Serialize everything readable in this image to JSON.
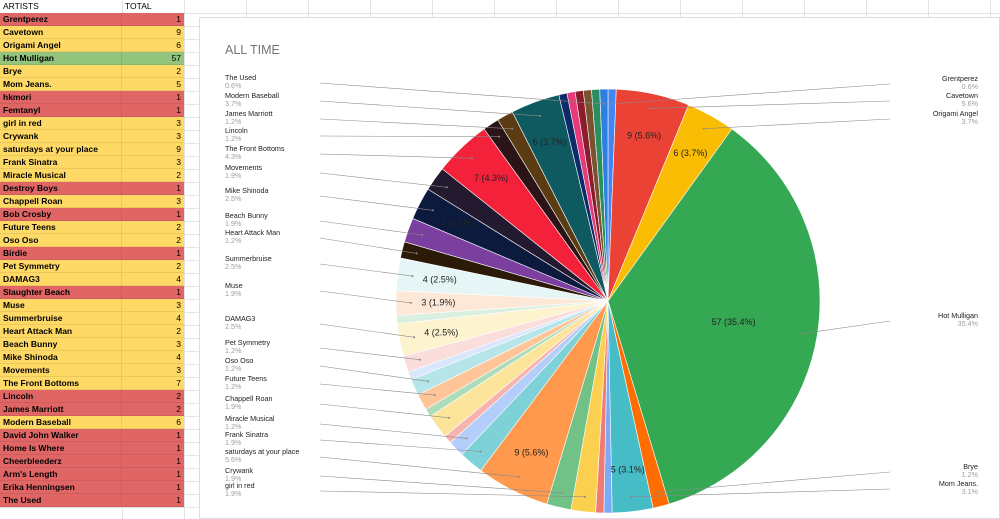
{
  "sheet": {
    "header_artists": "ARTISTS",
    "header_total": "TOTAL",
    "rows": [
      {
        "artist": "Grentperez",
        "total": "1",
        "color": "#e06666"
      },
      {
        "artist": "Cavetown",
        "total": "9",
        "color": "#ffd966"
      },
      {
        "artist": "Origami Angel",
        "total": "6",
        "color": "#ffd966"
      },
      {
        "artist": "Hot Mulligan",
        "total": "57",
        "color": "#93c47d"
      },
      {
        "artist": "Brye",
        "total": "2",
        "color": "#ffd966"
      },
      {
        "artist": "Mom Jeans.",
        "total": "5",
        "color": "#ffd966"
      },
      {
        "artist": "hkmori",
        "total": "1",
        "color": "#e06666"
      },
      {
        "artist": "Femtanyl",
        "total": "1",
        "color": "#e06666"
      },
      {
        "artist": "girl in red",
        "total": "3",
        "color": "#ffd966"
      },
      {
        "artist": "Crywank",
        "total": "3",
        "color": "#ffd966"
      },
      {
        "artist": "saturdays at your place",
        "total": "9",
        "color": "#ffd966"
      },
      {
        "artist": "Frank Sinatra",
        "total": "3",
        "color": "#ffd966"
      },
      {
        "artist": "Miracle Musical",
        "total": "2",
        "color": "#ffd966"
      },
      {
        "artist": "Destroy Boys",
        "total": "1",
        "color": "#e06666"
      },
      {
        "artist": "Chappell Roan",
        "total": "3",
        "color": "#ffd966"
      },
      {
        "artist": "Bob Crosby",
        "total": "1",
        "color": "#e06666"
      },
      {
        "artist": "Future Teens",
        "total": "2",
        "color": "#ffd966"
      },
      {
        "artist": "Oso Oso",
        "total": "2",
        "color": "#ffd966"
      },
      {
        "artist": "Birdie",
        "total": "1",
        "color": "#e06666"
      },
      {
        "artist": "Pet Symmetry",
        "total": "2",
        "color": "#ffd966"
      },
      {
        "artist": "DAMAG3",
        "total": "4",
        "color": "#ffd966"
      },
      {
        "artist": "Slaughter Beach",
        "total": "1",
        "color": "#e06666"
      },
      {
        "artist": "Muse",
        "total": "3",
        "color": "#ffd966"
      },
      {
        "artist": "Summerbruise",
        "total": "4",
        "color": "#ffd966"
      },
      {
        "artist": "Heart Attack Man",
        "total": "2",
        "color": "#ffd966"
      },
      {
        "artist": "Beach Bunny",
        "total": "3",
        "color": "#ffd966"
      },
      {
        "artist": "Mike Shinoda",
        "total": "4",
        "color": "#ffd966"
      },
      {
        "artist": "Movements",
        "total": "3",
        "color": "#ffd966"
      },
      {
        "artist": "The Front Bottoms",
        "total": "7",
        "color": "#ffd966"
      },
      {
        "artist": "Lincoln",
        "total": "2",
        "color": "#e06666"
      },
      {
        "artist": "James Marriott",
        "total": "2",
        "color": "#e06666"
      },
      {
        "artist": "Modern Baseball",
        "total": "6",
        "color": "#ffd966"
      },
      {
        "artist": "David John Walker",
        "total": "1",
        "color": "#e06666"
      },
      {
        "artist": "Home Is Where",
        "total": "1",
        "color": "#e06666"
      },
      {
        "artist": "Cheerbleederz",
        "total": "1",
        "color": "#e06666"
      },
      {
        "artist": "Arm's Length",
        "total": "1",
        "color": "#e06666"
      },
      {
        "artist": "Erika Henningsen",
        "total": "1",
        "color": "#e06666"
      },
      {
        "artist": "The Used",
        "total": "1",
        "color": "#e06666"
      }
    ]
  },
  "chart_data": {
    "type": "pie",
    "title": "ALL TIME",
    "slices": [
      {
        "name": "Grentperez",
        "value": 1,
        "label": "",
        "legend_pct": "0.6%",
        "color": "#4285f4"
      },
      {
        "name": "Cavetown",
        "value": 9,
        "label": "9 (5.6%)",
        "legend_pct": "5.6%",
        "color": "#ea4335"
      },
      {
        "name": "Origami Angel",
        "value": 6,
        "label": "6 (3.7%)",
        "legend_pct": "3.7%",
        "color": "#fbbc04"
      },
      {
        "name": "Hot Mulligan",
        "value": 57,
        "label": "57 (35.4%)",
        "legend_pct": "35.4%",
        "color": "#34a853"
      },
      {
        "name": "Brye",
        "value": 2,
        "label": "",
        "legend_pct": "1.2%",
        "color": "#ff6d01"
      },
      {
        "name": "Mom Jeans.",
        "value": 5,
        "label": "5 (3.1%)",
        "legend_pct": "3.1%",
        "color": "#46bdc6"
      },
      {
        "name": "hkmori",
        "value": 1,
        "label": "",
        "legend_pct": "",
        "color": "#7baaf7"
      },
      {
        "name": "Femtanyl",
        "value": 1,
        "label": "",
        "legend_pct": "",
        "color": "#f07b72"
      },
      {
        "name": "girl in red",
        "value": 3,
        "label": "",
        "legend_pct": "1.9%",
        "color": "#fcd04f"
      },
      {
        "name": "Crywank",
        "value": 3,
        "label": "",
        "legend_pct": "1.9%",
        "color": "#71c287"
      },
      {
        "name": "saturdays at your place",
        "value": 9,
        "label": "9 (5.6%)",
        "legend_pct": "5.6%",
        "color": "#ff994d"
      },
      {
        "name": "Frank Sinatra",
        "value": 3,
        "label": "",
        "legend_pct": "1.9%",
        "color": "#7ed1d7"
      },
      {
        "name": "Miracle Musical",
        "value": 2,
        "label": "",
        "legend_pct": "1.2%",
        "color": "#b3cefb"
      },
      {
        "name": "Destroy Boys",
        "value": 1,
        "label": "",
        "legend_pct": "",
        "color": "#f7b4ae"
      },
      {
        "name": "Chappell Roan",
        "value": 3,
        "label": "",
        "legend_pct": "1.9%",
        "color": "#fde49b"
      },
      {
        "name": "Bob Crosby",
        "value": 1,
        "label": "",
        "legend_pct": "",
        "color": "#aedcba"
      },
      {
        "name": "Future Teens",
        "value": 2,
        "label": "",
        "legend_pct": "1.2%",
        "color": "#ffc599"
      },
      {
        "name": "Oso Oso",
        "value": 2,
        "label": "",
        "legend_pct": "1.2%",
        "color": "#b5e5e8"
      },
      {
        "name": "Birdie",
        "value": 1,
        "label": "",
        "legend_pct": "",
        "color": "#d9e6fc"
      },
      {
        "name": "Pet Symmetry",
        "value": 2,
        "label": "",
        "legend_pct": "1.2%",
        "color": "#fbdedb"
      },
      {
        "name": "DAMAG3",
        "value": 4,
        "label": "4 (2.5%)",
        "legend_pct": "2.5%",
        "color": "#fef3cf"
      },
      {
        "name": "Slaughter Beach",
        "value": 1,
        "label": "",
        "legend_pct": "",
        "color": "#d9efdf"
      },
      {
        "name": "Muse",
        "value": 3,
        "label": "3 (1.9%)",
        "legend_pct": "1.9%",
        "color": "#fde8d8"
      },
      {
        "name": "Summerbruise",
        "value": 4,
        "label": "4 (2.5%)",
        "legend_pct": "2.5%",
        "color": "#e6f6f7"
      },
      {
        "name": "Heart Attack Man",
        "value": 2,
        "label": "",
        "legend_pct": "1.2%",
        "color": "#2c1a09"
      },
      {
        "name": "Beach Bunny",
        "value": 3,
        "label": "",
        "legend_pct": "1.9%",
        "color": "#7b3fa0"
      },
      {
        "name": "Mike Shinoda",
        "value": 4,
        "label": "4 (2.5%)",
        "legend_pct": "2.5%",
        "color": "#0c1a3d"
      },
      {
        "name": "Movements",
        "value": 3,
        "label": "",
        "legend_pct": "1.9%",
        "color": "#241a2f"
      },
      {
        "name": "The Front Bottoms",
        "value": 7,
        "label": "7 (4.3%)",
        "legend_pct": "4.3%",
        "color": "#f4213b"
      },
      {
        "name": "Lincoln",
        "value": 2,
        "label": "",
        "legend_pct": "1.2%",
        "color": "#2a1417"
      },
      {
        "name": "James Marriott",
        "value": 2,
        "label": "",
        "legend_pct": "1.2%",
        "color": "#5a3b12"
      },
      {
        "name": "Modern Baseball",
        "value": 6,
        "label": "6 (3.7%)",
        "legend_pct": "3.7%",
        "color": "#0e5a60"
      },
      {
        "name": "David John Walker",
        "value": 1,
        "label": "",
        "legend_pct": "",
        "color": "#0d2a6b"
      },
      {
        "name": "Home Is Where",
        "value": 1,
        "label": "",
        "legend_pct": "",
        "color": "#e83a79"
      },
      {
        "name": "Cheerbleederz",
        "value": 1,
        "label": "",
        "legend_pct": "",
        "color": "#8a1c2b"
      },
      {
        "name": "Arm's Length",
        "value": 1,
        "label": "",
        "legend_pct": "",
        "color": "#7a5230"
      },
      {
        "name": "Erika Henningsen",
        "value": 1,
        "label": "",
        "legend_pct": "",
        "color": "#2a8f5f"
      },
      {
        "name": "The Used",
        "value": 1,
        "label": "",
        "legend_pct": "0.6%",
        "color": "#2f7fe0"
      }
    ],
    "legend_placement": "labeled around pie"
  }
}
